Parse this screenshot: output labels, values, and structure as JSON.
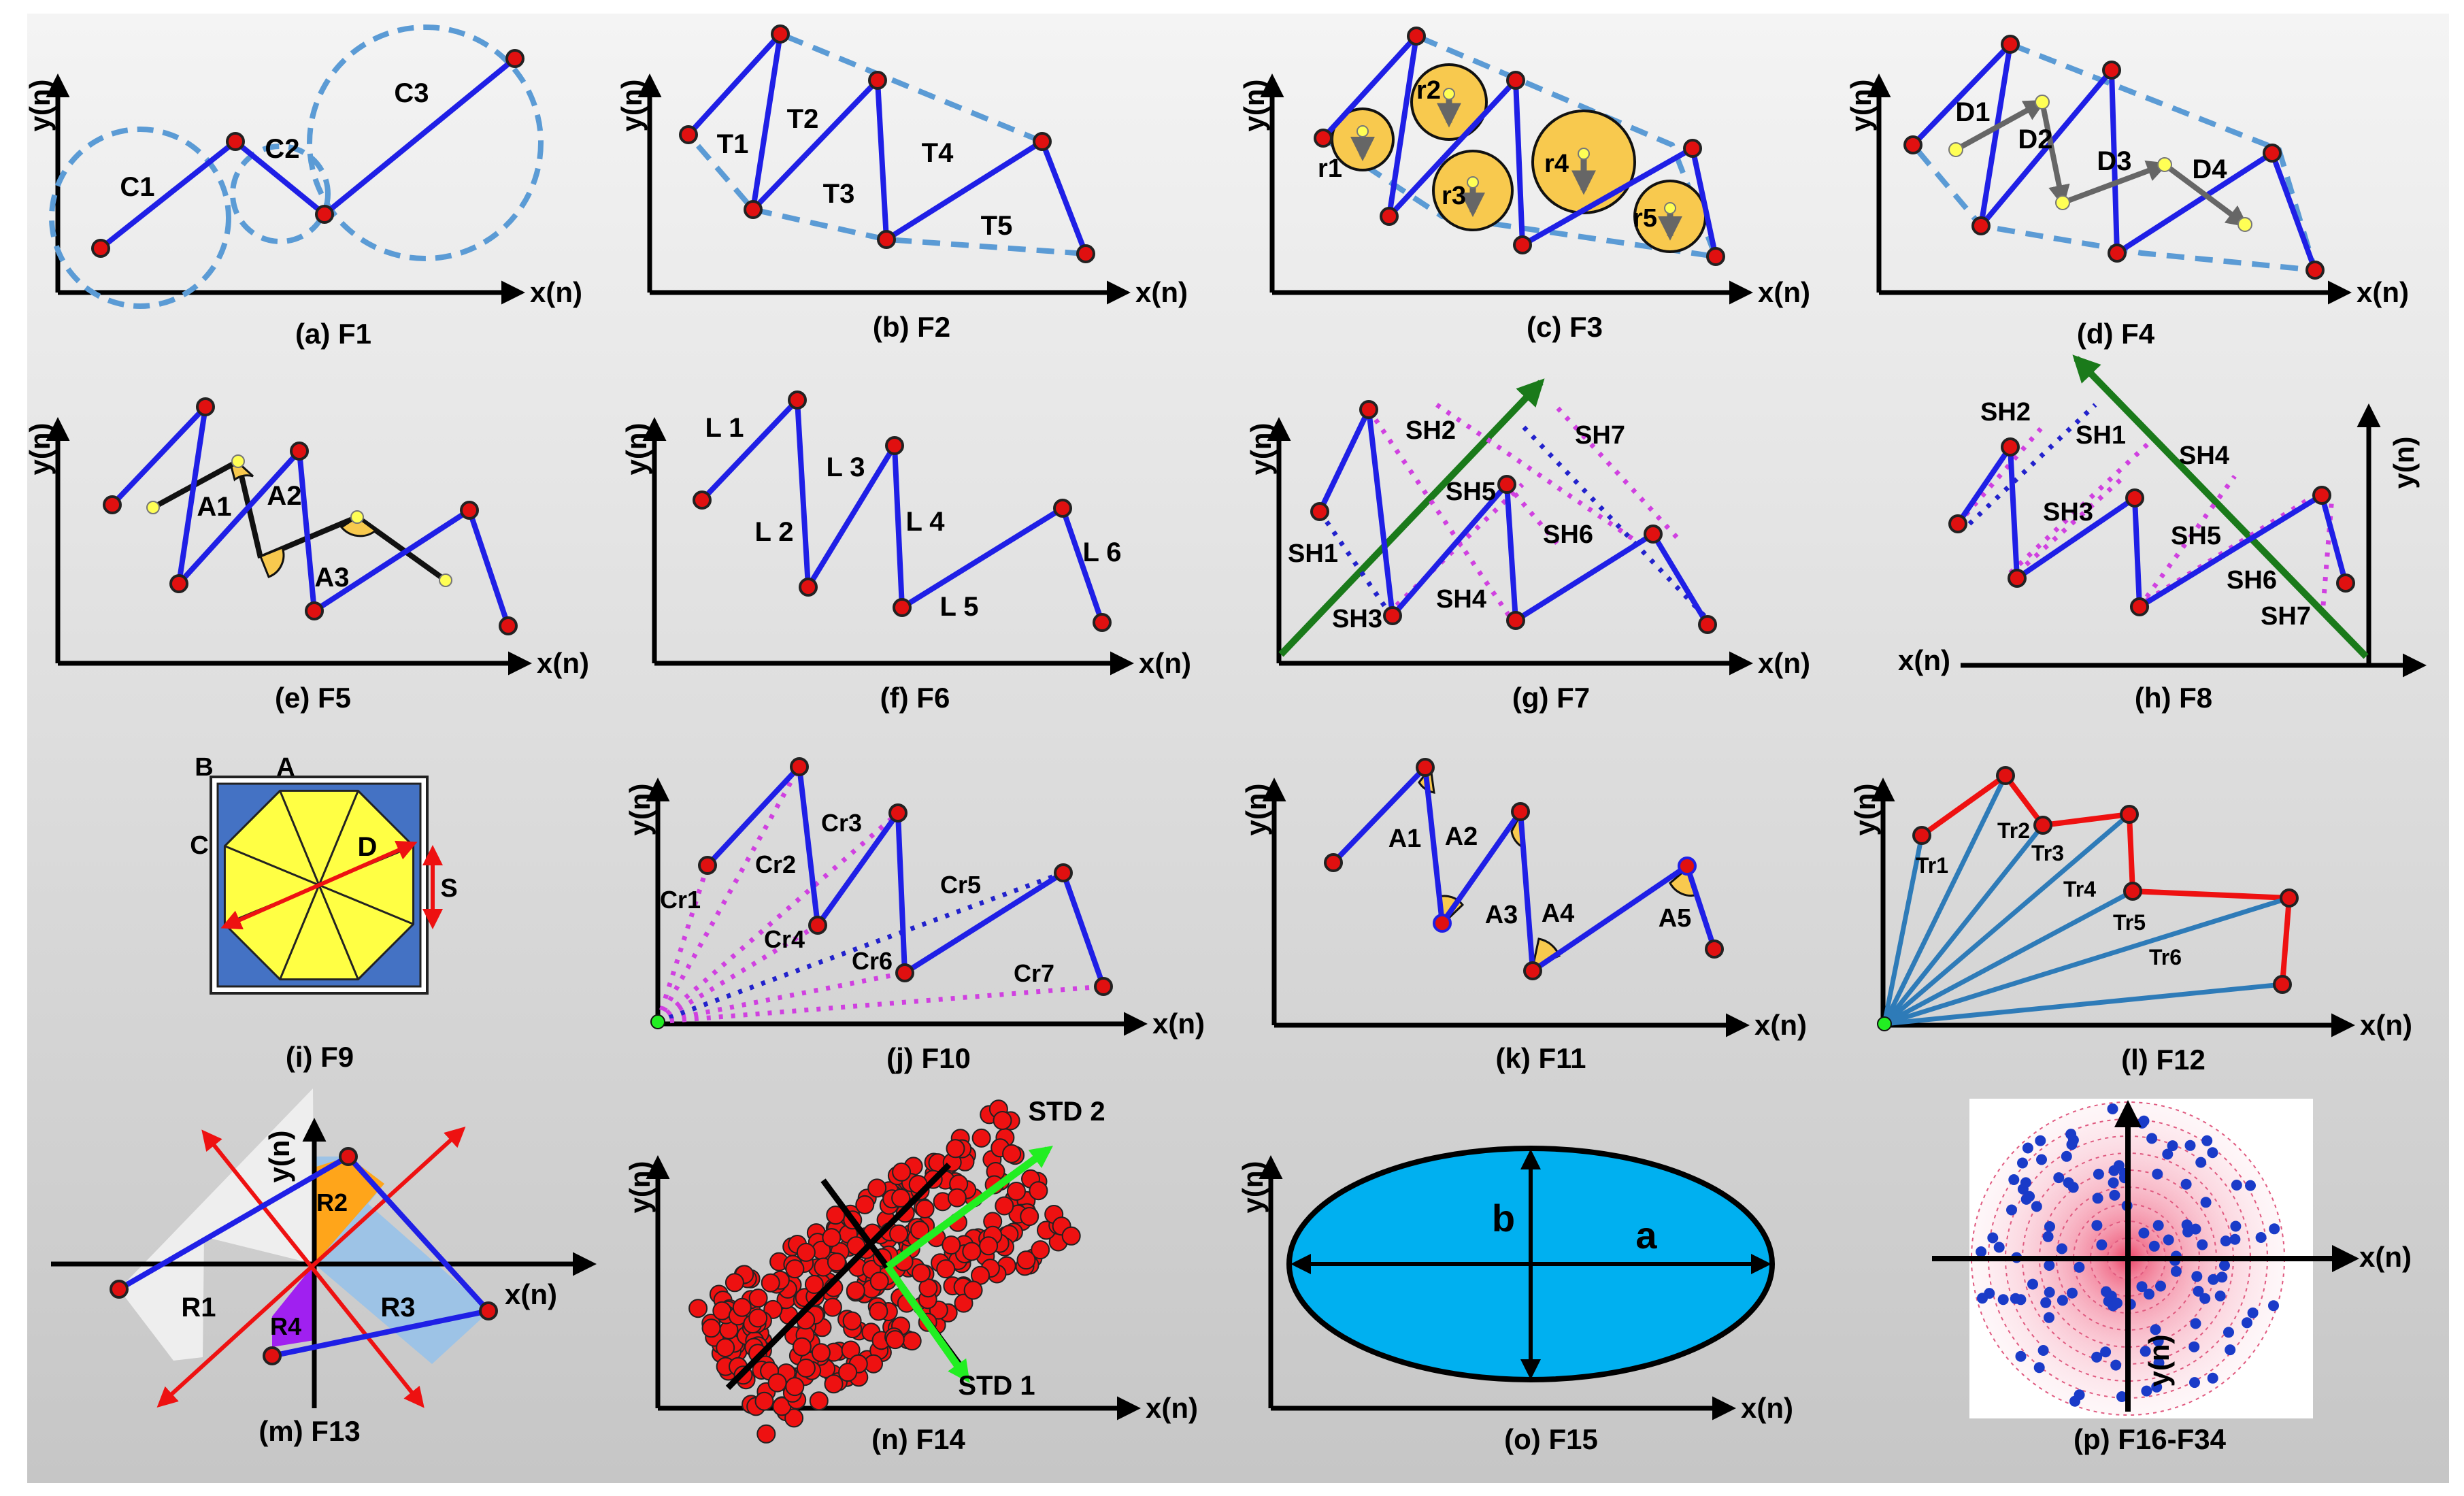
{
  "axis": {
    "x": "x(n)",
    "y": "y(n)"
  },
  "colors": {
    "background_top": "#f4f4f4",
    "background_bottom": "#c6c6c6",
    "line": "#1f1fe6",
    "point": "#e01010",
    "circle_dash": "#5b9bd5",
    "yellow_fill": "#f8c94e",
    "green": "#1a7a1a",
    "magenta": "#d040e0",
    "arrow_gray": "#666666",
    "red": "#ee1111",
    "ellipse_fill": "#00b0f0",
    "bright_green": "#22ee22"
  },
  "panels": [
    {
      "id": "a",
      "caption": "(a) F1",
      "labels": [
        "C1",
        "C2",
        "C3"
      ]
    },
    {
      "id": "b",
      "caption": "(b) F2",
      "labels": [
        "T1",
        "T2",
        "T3",
        "T4",
        "T5"
      ]
    },
    {
      "id": "c",
      "caption": "(c) F3",
      "labels": [
        "r1",
        "r2",
        "r3",
        "r4",
        "r5"
      ]
    },
    {
      "id": "d",
      "caption": "(d) F4",
      "labels": [
        "D1",
        "D2",
        "D3",
        "D4"
      ]
    },
    {
      "id": "e",
      "caption": "(e) F5",
      "labels": [
        "A1",
        "A2",
        "A3"
      ]
    },
    {
      "id": "f",
      "caption": "(f) F6",
      "labels": [
        "L 1",
        "L 2",
        "L 3",
        "L 4",
        "L 5",
        "L 6"
      ]
    },
    {
      "id": "g",
      "caption": "(g) F7",
      "labels": [
        "SH2",
        "SH7",
        "SH5",
        "SH6",
        "SH1",
        "SH3",
        "SH4"
      ]
    },
    {
      "id": "h",
      "caption": "(h) F8",
      "labels": [
        "SH2",
        "SH1",
        "SH4",
        "SH3",
        "SH5",
        "SH6",
        "SH7"
      ]
    },
    {
      "id": "i",
      "caption": "(i) F9",
      "labels": [
        "B",
        "A",
        "C",
        "D",
        "S"
      ]
    },
    {
      "id": "j",
      "caption": "(j) F10",
      "labels": [
        "Cr1",
        "Cr2",
        "Cr3",
        "Cr4",
        "Cr5",
        "Cr6",
        "Cr7"
      ]
    },
    {
      "id": "k",
      "caption": "(k) F11",
      "labels": [
        "A1",
        "A2",
        "A3",
        "A4",
        "A5"
      ]
    },
    {
      "id": "l",
      "caption": "(l) F12",
      "labels": [
        "Tr1",
        "Tr2",
        "Tr3",
        "Tr4",
        "Tr5",
        "Tr6"
      ]
    },
    {
      "id": "m",
      "caption": "(m) F13",
      "labels": [
        "R1",
        "R2",
        "R3",
        "R4"
      ]
    },
    {
      "id": "n",
      "caption": "(n) F14",
      "labels": [
        "STD 2",
        "STD 1"
      ]
    },
    {
      "id": "o",
      "caption": "(o) F15",
      "labels": [
        "b",
        "a"
      ]
    },
    {
      "id": "p",
      "caption": "(p) F16-F34",
      "labels": []
    }
  ]
}
